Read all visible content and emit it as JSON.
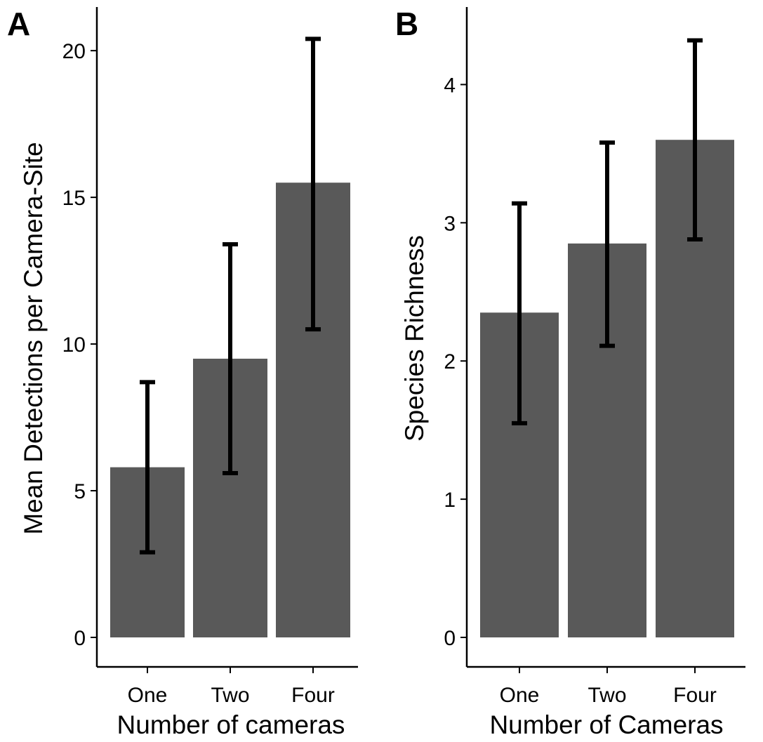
{
  "colors": {
    "bar": "#595959",
    "errorbar": "#000000",
    "axis": "#000000",
    "background": "#ffffff"
  },
  "chart_data": [
    {
      "panel": "A",
      "type": "bar",
      "categories": [
        "One",
        "Two",
        "Four"
      ],
      "values": [
        5.8,
        9.5,
        15.5
      ],
      "error_low": [
        2.9,
        5.6,
        10.5
      ],
      "error_high": [
        8.7,
        13.4,
        20.4
      ],
      "xlabel": "Number of cameras",
      "ylabel": "Mean Detections per Camera-Site",
      "ylim": [
        0,
        21.2
      ],
      "yticks": [
        0,
        5,
        10,
        15,
        20
      ],
      "ytick_labels": [
        "0",
        "5",
        "10",
        "15",
        "20"
      ],
      "grid": false,
      "legend": "none"
    },
    {
      "panel": "B",
      "type": "bar",
      "categories": [
        "One",
        "Two",
        "Four"
      ],
      "values": [
        2.35,
        2.85,
        3.6
      ],
      "error_low": [
        1.55,
        2.11,
        2.88
      ],
      "error_high": [
        3.14,
        3.58,
        4.32
      ],
      "xlabel": "Number of Cameras",
      "ylabel": "Species Richness",
      "ylim": [
        0,
        4.5
      ],
      "yticks": [
        0,
        1,
        2,
        3,
        4
      ],
      "ytick_labels": [
        "0",
        "1",
        "2",
        "3",
        "4"
      ],
      "grid": false,
      "legend": "none"
    }
  ]
}
